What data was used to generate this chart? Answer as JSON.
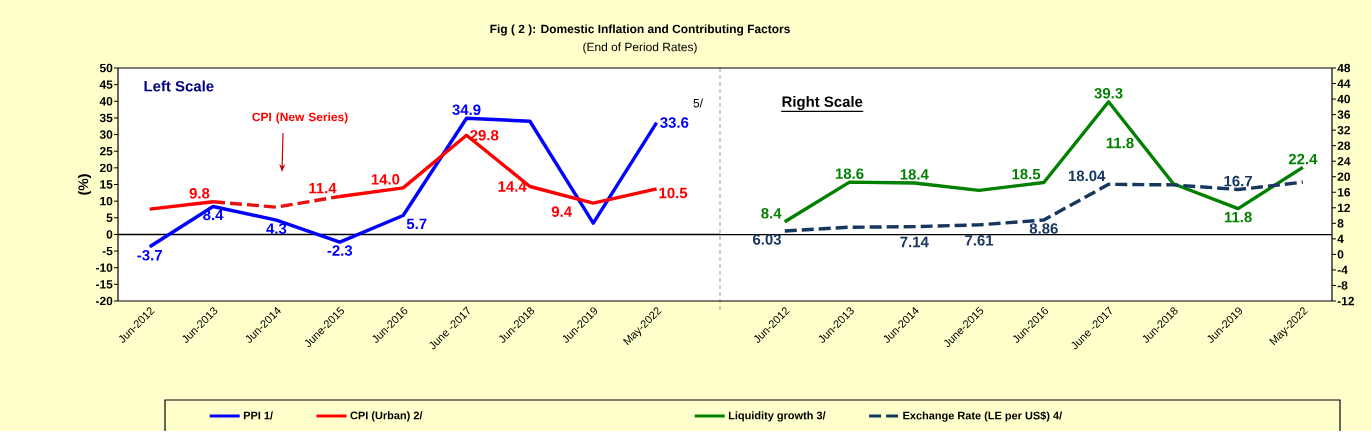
{
  "chart_data": [
    {
      "type": "line",
      "title": "Fig ( 2 ): Domestic Inflation and Contributing Factors",
      "subtitle": "(End of Period Rates)",
      "ylabel": "(%)",
      "categories": [
        "Jun-2012",
        "Jun-2013",
        "Jun-2014",
        "June-2015",
        "Jun-2016",
        "June -2017",
        "Jun-2018",
        "Jun-2019",
        "May-2022"
      ],
      "ylim": [
        -20,
        50
      ],
      "yticks": [
        -20,
        -15,
        -10,
        -5,
        0,
        5,
        10,
        15,
        20,
        25,
        30,
        35,
        40,
        45,
        50
      ],
      "legend": "bottom",
      "annotations": [
        "Left Scale",
        "CPI (New Series)",
        "5/",
        "10.5"
      ],
      "ref_lines": [
        {
          "axis": "y",
          "value": 0
        }
      ],
      "series": [
        {
          "name": "PPI 1/",
          "color": "#0000FF",
          "values": [
            -3.7,
            8.4,
            4.3,
            -2.3,
            5.7,
            34.9,
            34.0,
            3.4,
            33.6
          ],
          "value_labels": [
            "-3.7",
            "8.4",
            "4.3",
            "-2.3",
            "5.7",
            "34.9",
            null,
            null,
            "33.6"
          ]
        },
        {
          "name": "CPI (Urban) 2/",
          "color": "#FF0000",
          "values": [
            7.6,
            9.8,
            null,
            11.4,
            14.0,
            29.8,
            14.4,
            9.4,
            13.7
          ],
          "value_labels": [
            null,
            "9.8",
            null,
            "11.4",
            "14.0",
            "29.8",
            "14.4",
            "9.4",
            null
          ]
        },
        {
          "color": "#E81010",
          "line_style": "dashed",
          "values": [
            null,
            9.8,
            8.2,
            11.4,
            null,
            null,
            null,
            null,
            null
          ]
        }
      ]
    },
    {
      "type": "line",
      "categories": [
        "Jun-2012",
        "Jun-2013",
        "Jun-2014",
        "June-2015",
        "Jun-2016",
        "June -2017",
        "Jun-2018",
        "Jun-2019",
        "May-2022"
      ],
      "y2lim": [
        -12,
        48
      ],
      "y2ticks": [
        -12,
        -8,
        -4,
        0,
        4,
        8,
        12,
        16,
        20,
        24,
        28,
        32,
        36,
        40,
        44,
        48
      ],
      "legend": "bottom",
      "annotations": [
        "Right Scale",
        "11.8"
      ],
      "ref_lines": [
        {
          "axis": "y2",
          "value": 5.1
        }
      ],
      "series": [
        {
          "name": "Liquidity growth 3/",
          "color": "#008000",
          "axis": "y2",
          "values": [
            8.4,
            18.6,
            18.4,
            16.5,
            18.5,
            39.3,
            18.2,
            11.8,
            22.4
          ],
          "value_labels": [
            "8.4",
            "18.6",
            "18.4",
            null,
            "18.5",
            "39.3",
            null,
            "11.8",
            "22.4"
          ]
        },
        {
          "name": "Exchange Rate (LE per US$) 4/",
          "color": "#17375E",
          "axis": "y2",
          "line_style": "dashed",
          "values": [
            6.03,
            7.0,
            7.14,
            7.61,
            8.86,
            18.04,
            17.9,
            16.7,
            18.6
          ],
          "value_labels": [
            "6.03",
            null,
            "7.14",
            "7.61",
            "8.86",
            "18.04",
            null,
            "16.7",
            null
          ]
        }
      ]
    }
  ]
}
